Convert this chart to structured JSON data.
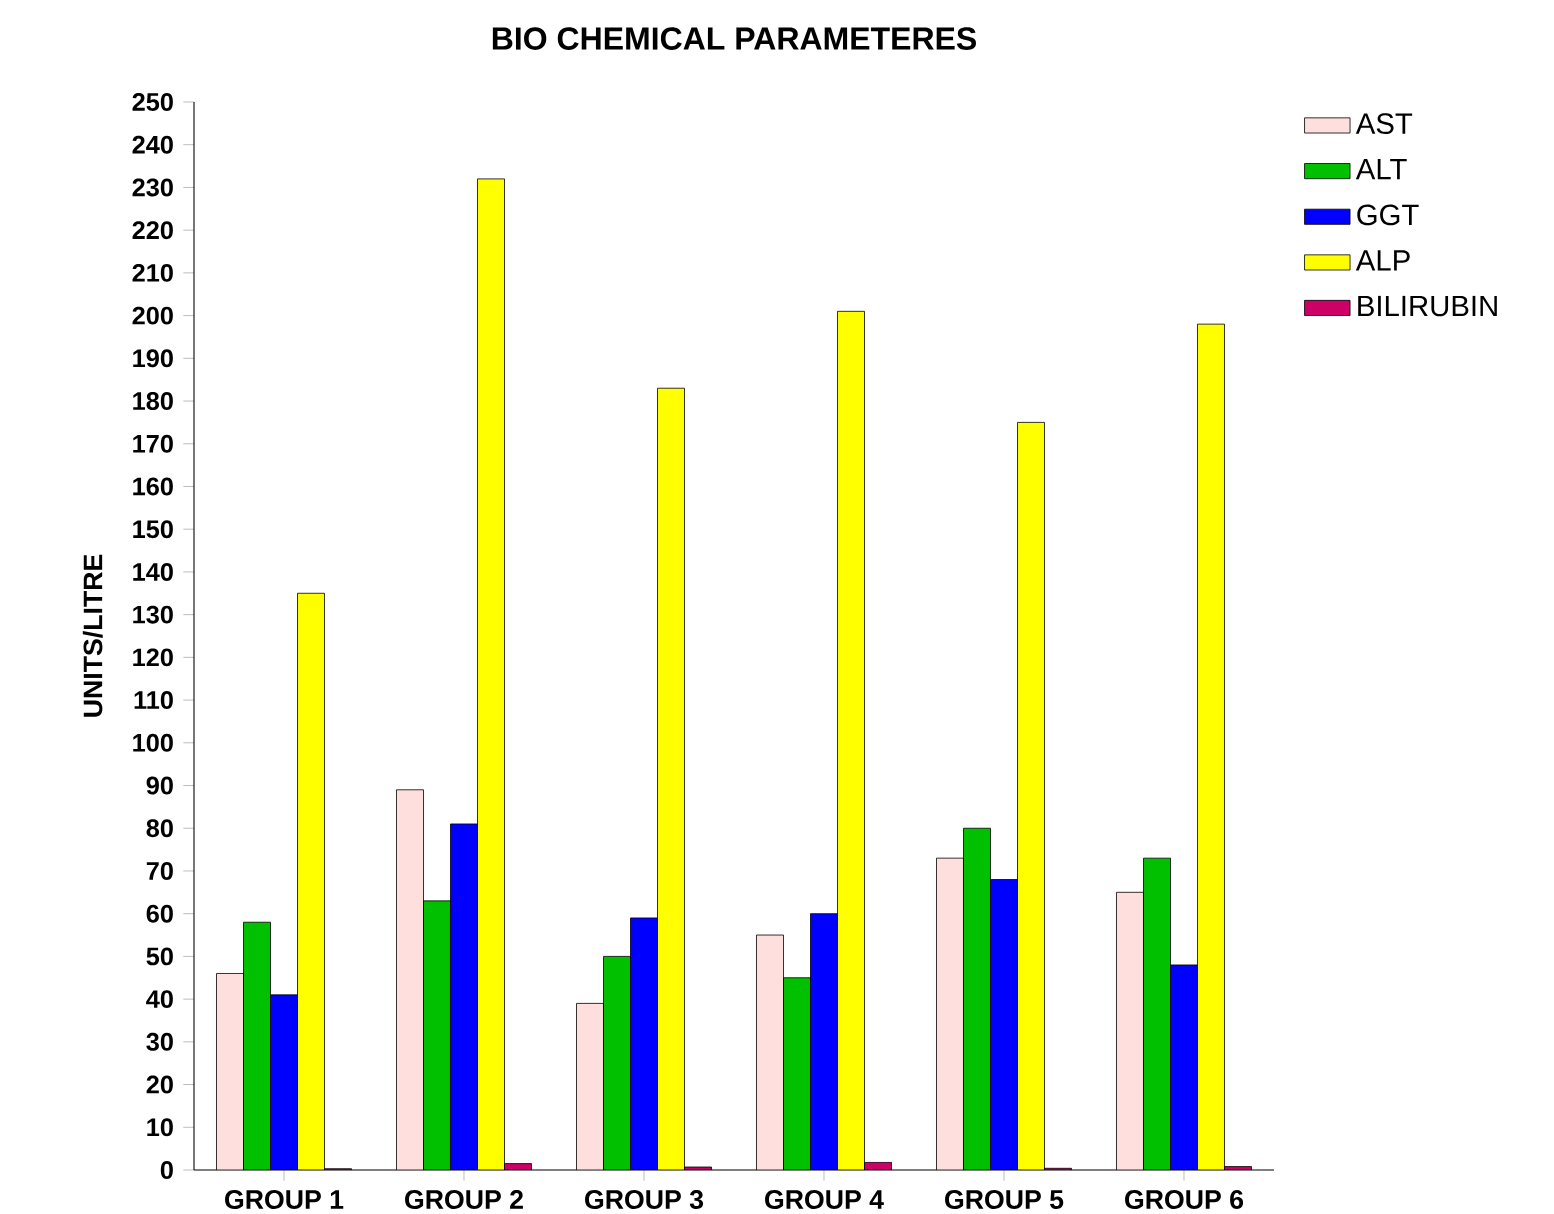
{
  "chart_data": {
    "type": "bar",
    "title": "BIO CHEMICAL PARAMETERES",
    "ylabel": "UNITS/LITRE",
    "categories": [
      "GROUP 1",
      "GROUP 2",
      "GROUP 3",
      "GROUP 4",
      "GROUP 5",
      "GROUP 6"
    ],
    "series": [
      {
        "name": "AST",
        "color": "#ffdede",
        "values": [
          46,
          89,
          39,
          55,
          73,
          65
        ]
      },
      {
        "name": "ALT",
        "color": "#00c000",
        "values": [
          58,
          63,
          50,
          45,
          80,
          73
        ]
      },
      {
        "name": "GGT",
        "color": "#0000ff",
        "values": [
          41,
          81,
          59,
          60,
          68,
          48
        ]
      },
      {
        "name": "ALP",
        "color": "#ffff00",
        "values": [
          135,
          232,
          183,
          201,
          175,
          198
        ]
      },
      {
        "name": "BILIRUBIN",
        "color": "#cc0066",
        "values": [
          0.3,
          1.5,
          0.7,
          1.8,
          0.4,
          0.8
        ]
      }
    ],
    "ylim": [
      0,
      250
    ],
    "yticks": [
      0,
      10,
      20,
      30,
      40,
      50,
      60,
      70,
      80,
      90,
      100,
      110,
      120,
      130,
      140,
      150,
      160,
      170,
      180,
      190,
      200,
      210,
      220,
      230,
      240,
      250
    ],
    "grid": false,
    "legend": "top right"
  }
}
